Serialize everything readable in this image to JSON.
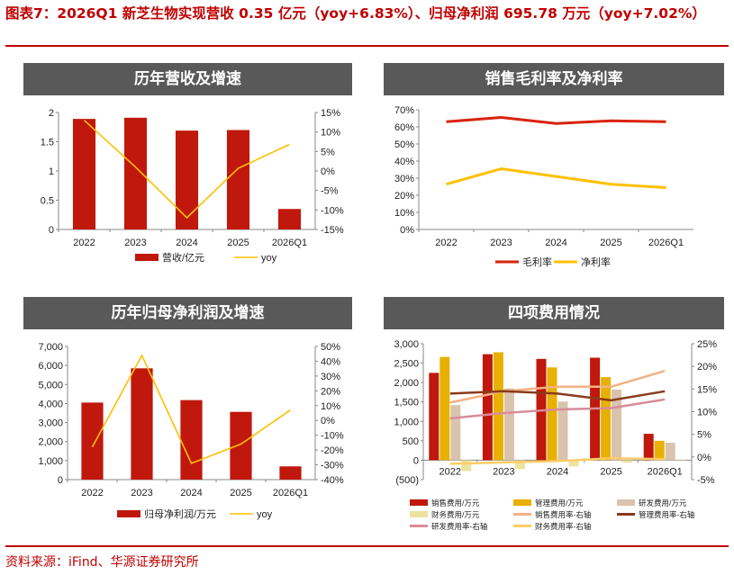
{
  "page_title": "图表7：2026Q1 新芝生物实现营收 0.35 亿元（yoy+6.83%）、归母净利润 695.78 万元（yoy+7.02%）",
  "source": "资料来源：iFind、华源证券研究所",
  "colors": {
    "accent": "#c00000",
    "header_bg": "#595959",
    "bar_red": "#c0180c",
    "line_yellow": "#ffc000",
    "line_red": "#d9230f"
  },
  "chart_data": [
    {
      "type": "bar",
      "title": "历年营收及增速",
      "categories": [
        "2022",
        "2023",
        "2024",
        "2025",
        "2026Q1"
      ],
      "y_ticks": [
        "2",
        "1.5",
        "1",
        "0.5",
        "0"
      ],
      "y2_ticks": [
        "15%",
        "10%",
        "5%",
        "0%",
        "-5%",
        "-10%",
        "-15%"
      ],
      "ylim": [
        0,
        2
      ],
      "y2lim": [
        -15,
        15
      ],
      "series": [
        {
          "name": "营收/亿元",
          "kind": "bar",
          "axis": "left",
          "color": "#c0180c",
          "values": [
            1.89,
            1.91,
            1.69,
            1.7,
            0.35
          ]
        },
        {
          "name": "yoy",
          "kind": "line",
          "axis": "right",
          "color": "#ffc000",
          "values": [
            13.0,
            1.0,
            -12.0,
            0.7,
            6.8
          ]
        }
      ],
      "legend_position": "bottom"
    },
    {
      "type": "line",
      "title": "销售毛利率及净利率",
      "categories": [
        "2022",
        "2023",
        "2024",
        "2025",
        "2026Q1"
      ],
      "y_ticks": [
        "70%",
        "60%",
        "50%",
        "40%",
        "30%",
        "20%",
        "10%",
        "0%"
      ],
      "ylim": [
        0,
        70
      ],
      "series": [
        {
          "name": "毛利率",
          "kind": "line",
          "axis": "left",
          "color": "#d9230f",
          "values": [
            63,
            65.5,
            62,
            63.5,
            63
          ]
        },
        {
          "name": "净利率",
          "kind": "line",
          "axis": "left",
          "color": "#ffc000",
          "values": [
            26.5,
            35.5,
            31,
            26.5,
            24.5
          ]
        }
      ],
      "legend_position": "bottom"
    },
    {
      "type": "bar",
      "title": "历年归母净利润及增速",
      "categories": [
        "2022",
        "2023",
        "2024",
        "2025",
        "2026Q1"
      ],
      "y_ticks": [
        "7,000",
        "6,000",
        "5,000",
        "4,000",
        "3,000",
        "2,000",
        "1,000",
        "0"
      ],
      "y2_ticks": [
        "50%",
        "40%",
        "30%",
        "20%",
        "10%",
        "0%",
        "-10%",
        "-20%",
        "-30%",
        "-40%"
      ],
      "ylim": [
        0,
        7000
      ],
      "y2lim": [
        -40,
        50
      ],
      "series": [
        {
          "name": "归母净利润/万元",
          "kind": "bar",
          "axis": "left",
          "color": "#c0180c",
          "values": [
            4050,
            5850,
            4180,
            3560,
            696
          ]
        },
        {
          "name": "yoy",
          "kind": "line",
          "axis": "right",
          "color": "#ffc000",
          "values": [
            -18,
            44,
            -29,
            -16,
            7
          ]
        }
      ],
      "legend_position": "bottom"
    },
    {
      "type": "bar",
      "title": "四项费用情况",
      "categories": [
        "2022",
        "2023",
        "2024",
        "2025",
        "2026Q1"
      ],
      "y_ticks": [
        "3,000",
        "2,500",
        "2,000",
        "1,500",
        "1,000",
        "500",
        "0",
        "(500)"
      ],
      "y2_ticks": [
        "25%",
        "20%",
        "15%",
        "10%",
        "5%",
        "0%",
        "-5%"
      ],
      "ylim": [
        -500,
        3000
      ],
      "y2lim": [
        -5,
        25
      ],
      "series": [
        {
          "name": "销售费用/万元",
          "kind": "bar",
          "axis": "left",
          "color": "#c0180c",
          "values": [
            2250,
            2730,
            2610,
            2640,
            680
          ]
        },
        {
          "name": "管理费用/万元",
          "kind": "bar",
          "axis": "left",
          "color": "#e8b000",
          "values": [
            2660,
            2780,
            2390,
            2140,
            500
          ]
        },
        {
          "name": "研发费用/万元",
          "kind": "bar",
          "axis": "left",
          "color": "#d9c3ad",
          "values": [
            1420,
            1850,
            1510,
            1820,
            450
          ]
        },
        {
          "name": "财务费用/万元",
          "kind": "bar",
          "axis": "left",
          "color": "#ece3a0",
          "values": [
            -280,
            -230,
            -160,
            -60,
            -20
          ]
        },
        {
          "name": "销售费用率-右轴",
          "kind": "line",
          "axis": "right",
          "color": "#f4b183",
          "values": [
            12,
            14.5,
            15.5,
            15.5,
            19
          ]
        },
        {
          "name": "管理费用率-右轴",
          "kind": "line",
          "axis": "right",
          "color": "#8b3a1a",
          "values": [
            14,
            14.5,
            14,
            12.5,
            14.5
          ]
        },
        {
          "name": "研发费用率-右轴",
          "kind": "line",
          "axis": "right",
          "color": "#d98c99",
          "values": [
            8.5,
            9.7,
            10.5,
            10.8,
            12.7
          ]
        },
        {
          "name": "财务费用率-右轴",
          "kind": "line",
          "axis": "right",
          "color": "#ffcc66",
          "values": [
            -1.5,
            -1.2,
            -0.9,
            -0.3,
            -0.5
          ]
        }
      ],
      "legend_position": "bottom"
    }
  ]
}
